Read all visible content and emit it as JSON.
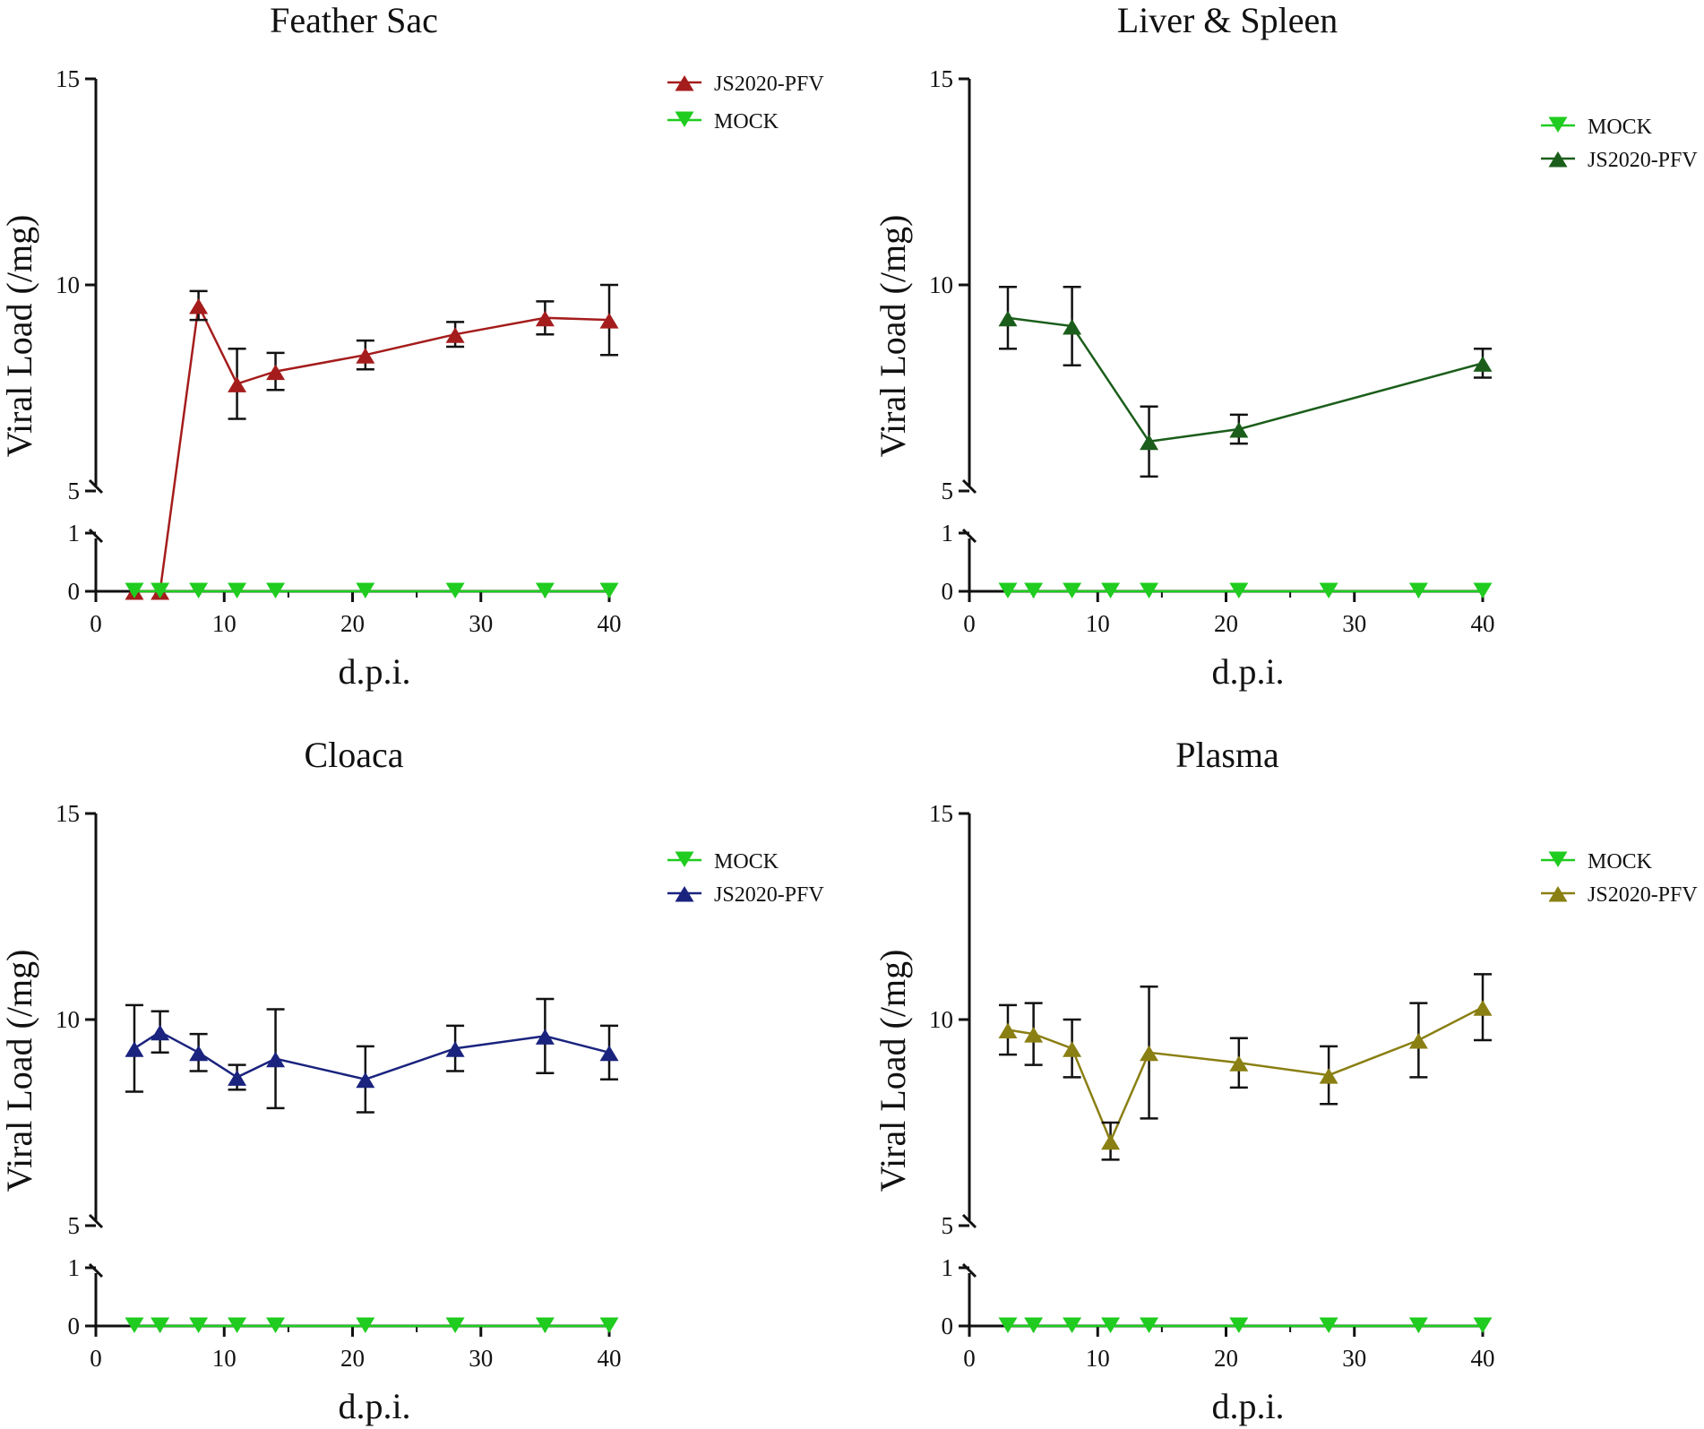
{
  "chart_data": [
    {
      "type": "line",
      "title": "Feather Sac",
      "xlabel": "d.p.i.",
      "ylabel": "Viral Load (/mg)",
      "xlim": [
        0,
        40
      ],
      "x_ticks": [
        "0",
        "10",
        "20",
        "30",
        "40"
      ],
      "ylim_upper": [
        5,
        15
      ],
      "y_ticks_upper": [
        "5",
        "10",
        "15"
      ],
      "ylim_lower": [
        0,
        1
      ],
      "y_ticks_lower": [
        "0",
        "1"
      ],
      "legend_position": "top-right",
      "series": [
        {
          "name": "JS2020-PFV",
          "color": "#a51c1c",
          "marker": "triangle-up",
          "x": [
            3,
            5,
            8,
            11,
            14,
            21,
            28,
            35,
            40
          ],
          "values": [
            0,
            0,
            9.5,
            7.6,
            7.9,
            8.3,
            8.8,
            9.2,
            9.15
          ],
          "errors": [
            0,
            0,
            0.35,
            0.85,
            0.45,
            0.35,
            0.3,
            0.4,
            0.85
          ]
        },
        {
          "name": "MOCK",
          "color": "#1fcc1f",
          "marker": "triangle-down",
          "x": [
            3,
            5,
            8,
            11,
            14,
            21,
            28,
            35,
            40
          ],
          "values": [
            0,
            0,
            0,
            0,
            0,
            0,
            0,
            0,
            0
          ],
          "errors": [
            0,
            0,
            0,
            0,
            0,
            0,
            0,
            0,
            0
          ]
        }
      ],
      "legend_order": [
        "JS2020-PFV",
        "MOCK"
      ]
    },
    {
      "type": "line",
      "title": "Liver & Spleen",
      "xlabel": "d.p.i.",
      "ylabel": "Viral Load (/mg)",
      "xlim": [
        0,
        40
      ],
      "x_ticks": [
        "0",
        "10",
        "20",
        "30",
        "40"
      ],
      "ylim_upper": [
        5,
        15
      ],
      "y_ticks_upper": [
        "5",
        "10",
        "15"
      ],
      "ylim_lower": [
        0,
        1
      ],
      "y_ticks_lower": [
        "0",
        "1"
      ],
      "legend_position": "top-right",
      "series": [
        {
          "name": "MOCK",
          "color": "#1fcc1f",
          "marker": "triangle-down",
          "x": [
            3,
            5,
            8,
            11,
            14,
            21,
            28,
            35,
            40
          ],
          "values": [
            0,
            0,
            0,
            0,
            0,
            0,
            0,
            0,
            0
          ],
          "errors": [
            0,
            0,
            0,
            0,
            0,
            0,
            0,
            0,
            0
          ]
        },
        {
          "name": "JS2020-PFV",
          "color": "#1b5e1b",
          "marker": "triangle-up",
          "x": [
            3,
            8,
            14,
            21,
            40
          ],
          "values": [
            9.2,
            9.0,
            6.2,
            6.5,
            8.1
          ],
          "errors": [
            0.75,
            0.95,
            0.85,
            0.35,
            0.35
          ]
        }
      ],
      "legend_order": [
        "MOCK",
        "JS2020-PFV"
      ]
    },
    {
      "type": "line",
      "title": "Cloaca",
      "xlabel": "d.p.i.",
      "ylabel": "Viral Load (/mg)",
      "xlim": [
        0,
        40
      ],
      "x_ticks": [
        "0",
        "10",
        "20",
        "30",
        "40"
      ],
      "ylim_upper": [
        5,
        15
      ],
      "y_ticks_upper": [
        "5",
        "10",
        "15"
      ],
      "ylim_lower": [
        0,
        1
      ],
      "y_ticks_lower": [
        "0",
        "1"
      ],
      "legend_position": "top-right",
      "series": [
        {
          "name": "MOCK",
          "color": "#1fcc1f",
          "marker": "triangle-down",
          "x": [
            3,
            5,
            8,
            11,
            14,
            21,
            28,
            35,
            40
          ],
          "values": [
            0,
            0,
            0,
            0,
            0,
            0,
            0,
            0,
            0
          ],
          "errors": [
            0,
            0,
            0,
            0,
            0,
            0,
            0,
            0,
            0
          ]
        },
        {
          "name": "JS2020-PFV",
          "color": "#1a237e",
          "marker": "triangle-up",
          "x": [
            3,
            5,
            8,
            11,
            14,
            21,
            28,
            35,
            40
          ],
          "values": [
            9.3,
            9.7,
            9.2,
            8.6,
            9.05,
            8.55,
            9.3,
            9.6,
            9.2
          ],
          "errors": [
            1.05,
            0.5,
            0.45,
            0.3,
            1.2,
            0.8,
            0.55,
            0.9,
            0.65
          ]
        }
      ],
      "legend_order": [
        "MOCK",
        "JS2020-PFV"
      ]
    },
    {
      "type": "line",
      "title": "Plasma",
      "xlabel": "d.p.i.",
      "ylabel": "Viral Load (/mg)",
      "xlim": [
        0,
        40
      ],
      "x_ticks": [
        "0",
        "10",
        "20",
        "30",
        "40"
      ],
      "ylim_upper": [
        5,
        15
      ],
      "y_ticks_upper": [
        "5",
        "10",
        "15"
      ],
      "ylim_lower": [
        0,
        1
      ],
      "y_ticks_lower": [
        "0",
        "1"
      ],
      "legend_position": "top-right",
      "series": [
        {
          "name": "MOCK",
          "color": "#1fcc1f",
          "marker": "triangle-down",
          "x": [
            3,
            5,
            8,
            11,
            14,
            21,
            28,
            35,
            40
          ],
          "values": [
            0,
            0,
            0,
            0,
            0,
            0,
            0,
            0,
            0
          ],
          "errors": [
            0,
            0,
            0,
            0,
            0,
            0,
            0,
            0,
            0
          ]
        },
        {
          "name": "JS2020-PFV",
          "color": "#8a7f12",
          "marker": "triangle-up",
          "x": [
            3,
            5,
            8,
            11,
            14,
            21,
            28,
            35,
            40
          ],
          "values": [
            9.75,
            9.65,
            9.3,
            7.05,
            9.2,
            8.95,
            8.65,
            9.5,
            10.3
          ],
          "errors": [
            0.6,
            0.75,
            0.7,
            0.45,
            1.6,
            0.6,
            0.7,
            0.9,
            0.8
          ]
        }
      ],
      "legend_order": [
        "MOCK",
        "JS2020-PFV"
      ]
    }
  ]
}
